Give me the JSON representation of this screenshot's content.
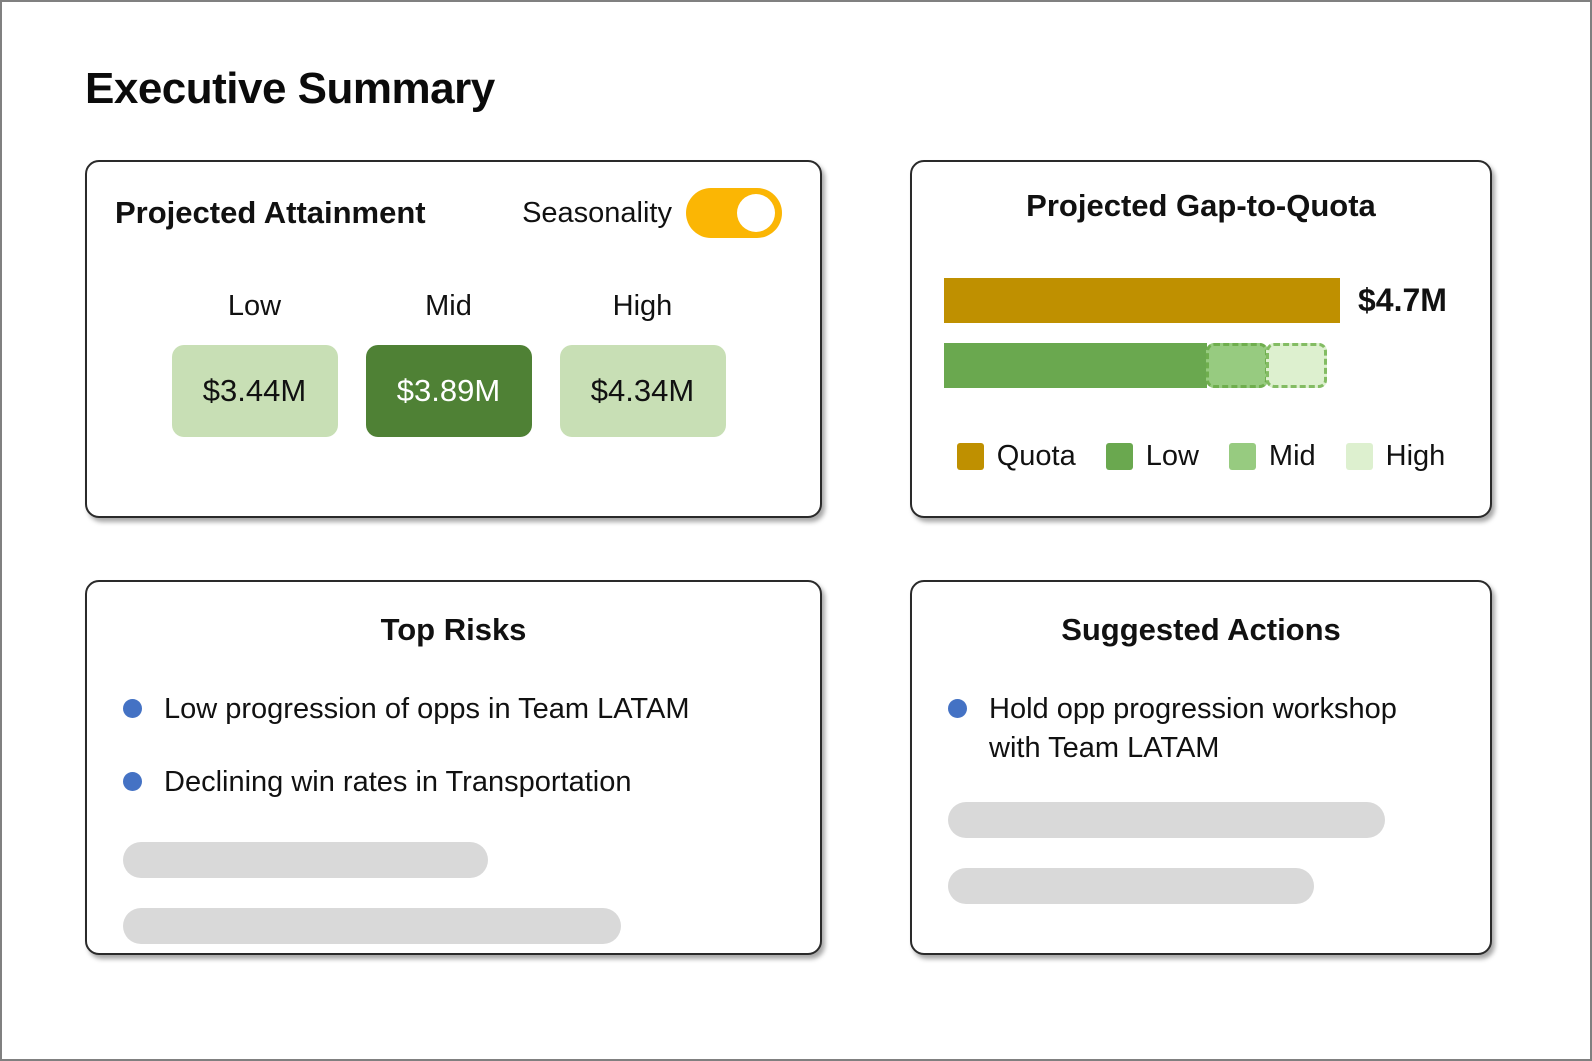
{
  "page": {
    "title": "Executive Summary"
  },
  "colors": {
    "toggle_on": "#FBB604",
    "bullet_dot": "#4472C4",
    "skeleton": "#D9D9D9",
    "chip_light": "#C8DFB5",
    "chip_dark": "#4F8135"
  },
  "cards": {
    "attainment": {
      "title": "Projected Attainment",
      "toggle": {
        "label": "Seasonality",
        "state": "on",
        "color": "#FBB604"
      },
      "scenarios": [
        {
          "label": "Low",
          "value": "$3.44M",
          "bg": "#C8DFB5"
        },
        {
          "label": "Mid",
          "value": "$3.89M",
          "bg": "#4F8135"
        },
        {
          "label": "High",
          "value": "$4.34M",
          "bg": "#C8DFB5"
        }
      ]
    },
    "gap": {
      "title": "Projected Gap-to-Quota",
      "quota_value_label": "$4.7M",
      "legend": [
        {
          "label": "Quota",
          "color": "#BF9000"
        },
        {
          "label": "Low",
          "color": "#6AA84F"
        },
        {
          "label": "Mid",
          "color": "#97CB80"
        },
        {
          "label": "High",
          "color": "#DDF0CF"
        }
      ]
    },
    "risks": {
      "title": "Top Risks",
      "items": [
        "Low progression of opps in Team LATAM",
        "Declining win rates in Transportation"
      ],
      "placeholder_rows": 2
    },
    "actions": {
      "title": "Suggested Actions",
      "items": [
        "Hold opp progression workshop with Team LATAM"
      ],
      "placeholder_rows": 2
    }
  },
  "chart_data": {
    "type": "bar",
    "orientation": "horizontal",
    "title": "Projected Gap-to-Quota",
    "legend_position": "bottom",
    "series": [
      {
        "name": "Quota",
        "value_m_usd": 4.7,
        "label": "$4.7M",
        "color": "#BF9000",
        "style": "solid"
      },
      {
        "name": "Projected attainment",
        "segments": [
          {
            "name": "Low",
            "cumulative_m_usd": 3.44,
            "color": "#6AA84F",
            "style": "solid"
          },
          {
            "name": "Mid",
            "cumulative_m_usd": 3.89,
            "color": "#97CB80",
            "style": "dashed"
          },
          {
            "name": "High",
            "cumulative_m_usd": 4.34,
            "color": "#DDF0CF",
            "style": "dashed"
          }
        ]
      }
    ]
  }
}
